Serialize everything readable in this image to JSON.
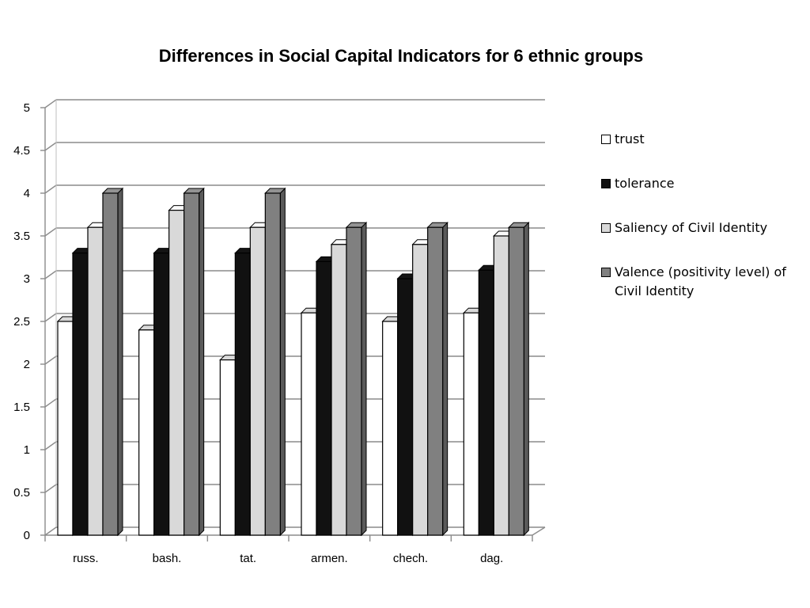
{
  "chart_data": {
    "type": "bar",
    "title": "Differences in Social Capital Indicators for 6 ethnic groups",
    "categories": [
      "russ.",
      "bash.",
      "tat.",
      "armen.",
      "chech.",
      "dag."
    ],
    "series": [
      {
        "name": "trust",
        "color": "#ffffff",
        "values": [
          2.5,
          2.4,
          2.05,
          2.6,
          2.5,
          2.6
        ]
      },
      {
        "name": "tolerance",
        "color": "#111111",
        "values": [
          3.3,
          3.3,
          3.3,
          3.2,
          3.0,
          3.1
        ]
      },
      {
        "name": "Saliency of Civil Identity",
        "color": "#d9d9d9",
        "values": [
          3.6,
          3.8,
          3.6,
          3.4,
          3.4,
          3.5
        ]
      },
      {
        "name": "Valence (positivity level) of Civil Identity",
        "color": "#808080",
        "values": [
          4.0,
          4.0,
          4.0,
          3.6,
          3.6,
          3.6
        ]
      }
    ],
    "ylim": [
      0,
      5
    ],
    "yticks": [
      "0",
      "0.5",
      "1",
      "1.5",
      "2",
      "2.5",
      "3",
      "3.5",
      "4",
      "4.5",
      "5"
    ],
    "xlabel": "",
    "ylabel": "",
    "grid": true,
    "style": "3d-clustered-column",
    "legend_position": "right"
  }
}
